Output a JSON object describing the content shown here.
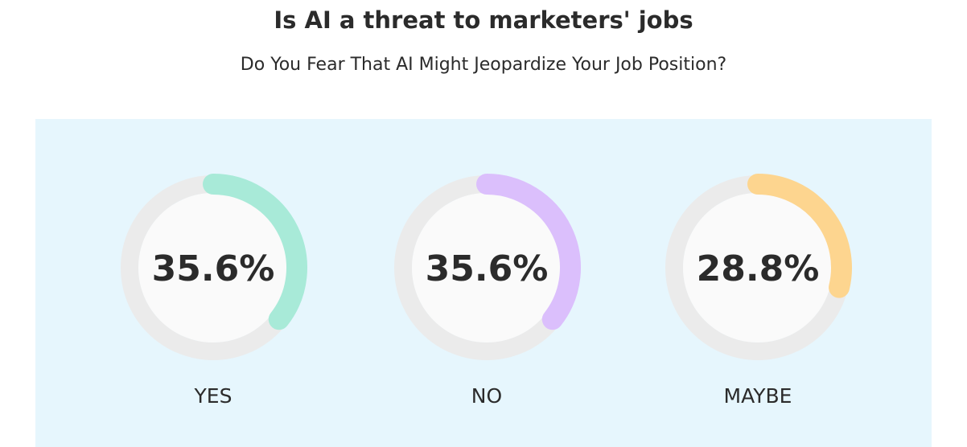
{
  "chart_data": {
    "type": "donut",
    "title": "Is AI a threat to marketers' jobs",
    "subtitle": "Do You Fear That AI Might Jeopardize Your Job Position?",
    "categories": [
      "YES",
      "NO",
      "MAYBE"
    ],
    "values": [
      35.6,
      35.6,
      28.8
    ],
    "value_labels": [
      "35.6%",
      "35.6%",
      "28.8%"
    ],
    "colors": [
      "#a8ead8",
      "#dbbffc",
      "#fdd58f"
    ]
  }
}
